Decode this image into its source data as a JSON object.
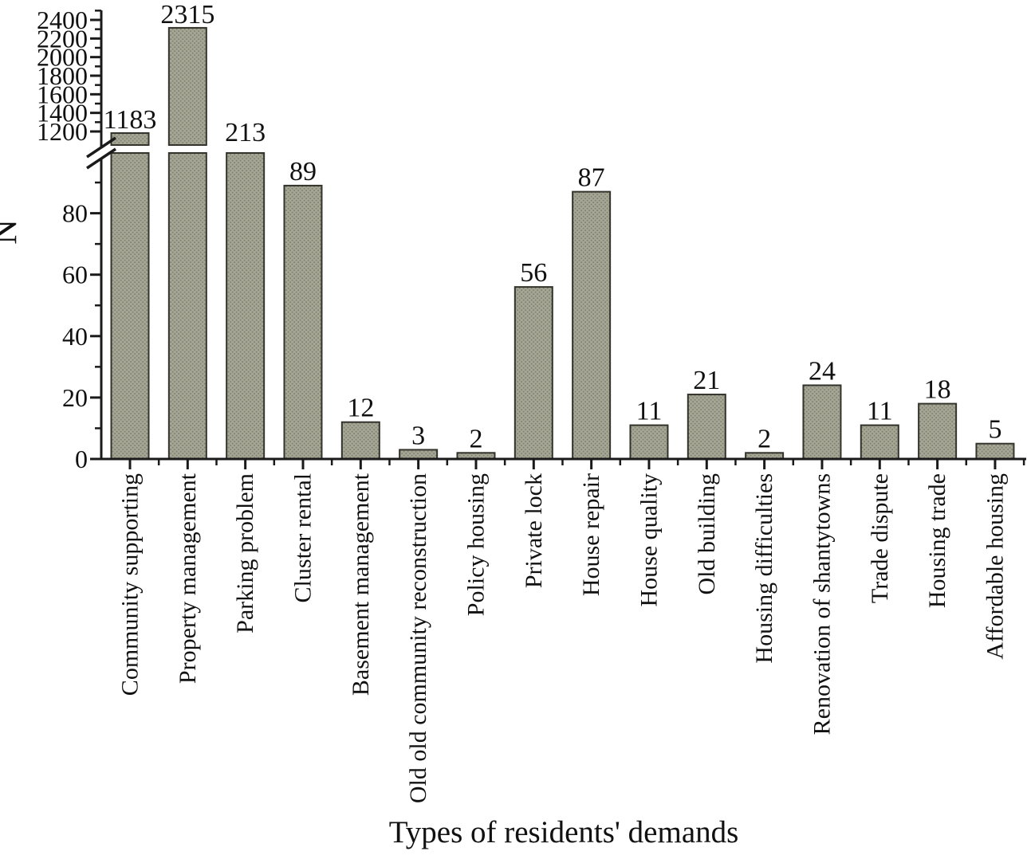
{
  "chart_data": {
    "type": "bar",
    "title": "",
    "xlabel": "Types of residents' demands",
    "ylabel": "N",
    "categories": [
      "Community supporting",
      "Property management",
      "Parking problem",
      "Cluster rental",
      "Basement management",
      "Old old community reconstruction",
      "Policy housing",
      "Private lock",
      "House repair",
      "House quality",
      "Old building",
      "Housing difficulties",
      "Renovation of shantytowns",
      "Trade dispute",
      "Housing trade",
      "Affordable housing"
    ],
    "values": [
      1183,
      2315,
      213,
      89,
      12,
      3,
      2,
      56,
      87,
      11,
      21,
      2,
      24,
      11,
      18,
      5
    ],
    "bar_value_labels": [
      "1183",
      "2315",
      "213",
      "89",
      "12",
      "3",
      "2",
      "56",
      "87",
      "11",
      "21",
      "2",
      "24",
      "11",
      "18",
      "5"
    ],
    "axis_break": true,
    "lower_axis": {
      "range": [
        0,
        100
      ],
      "major_ticks": [
        0,
        20,
        40,
        60,
        80
      ],
      "minor_ticks": [
        10,
        30,
        50,
        70,
        90
      ]
    },
    "upper_axis": {
      "range": [
        1200,
        2400
      ],
      "major_ticks": [
        1200,
        1400,
        1600,
        1800,
        2000,
        2200,
        2400
      ],
      "minor_ticks": [
        1300,
        1500,
        1700,
        1900,
        2100,
        2300,
        2500
      ]
    },
    "grid": false,
    "legend": null,
    "colors": {
      "bar_fill_base": "#a5a695",
      "bar_fill_dot": "#7f806d",
      "bar_border": "#33332c",
      "axis": "#1a1a1a",
      "text": "#111111",
      "background": "#ffffff"
    }
  }
}
